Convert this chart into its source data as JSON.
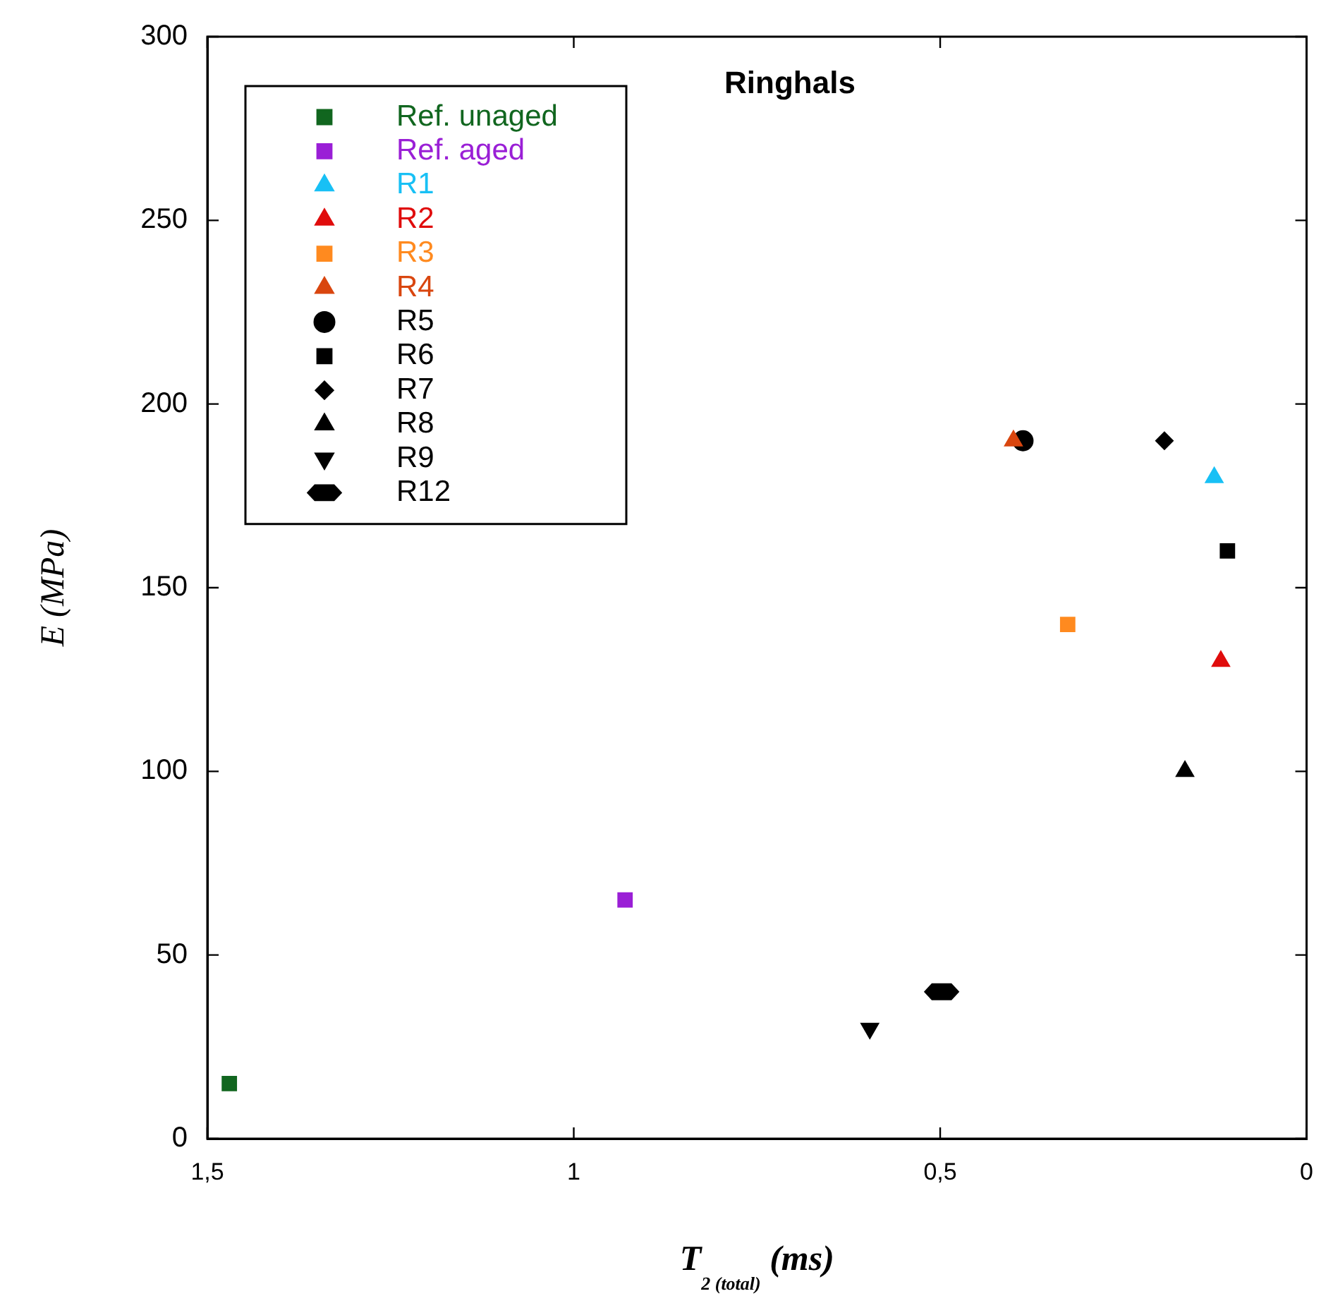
{
  "chart_data": {
    "type": "scatter",
    "title": "Ringhals",
    "xlabel": "T$_{2 (total)}$ (ms)",
    "ylabel": "E (MPa)",
    "xlim": [
      1.5,
      0
    ],
    "xticks": [
      {
        "value": 1.5,
        "label": "1,5"
      },
      1,
      {
        "value": 0.5,
        "label": "0,5"
      },
      0
    ],
    "ylim": [
      0,
      300
    ],
    "yticks": [
      0,
      50,
      100,
      150,
      200,
      250,
      300
    ],
    "grid": false,
    "legend": "top left",
    "series": [
      {
        "name": "Ref. unaged",
        "color": "#11661f",
        "marker": "square",
        "x": [
          1.47
        ],
        "values": [
          15
        ]
      },
      {
        "name": "Ref. aged",
        "color": "#9a1fd6",
        "marker": "square",
        "x": [
          0.93
        ],
        "values": [
          65
        ]
      },
      {
        "name": "R1",
        "color": "#18c0f5",
        "marker": "triangle",
        "x": [
          0.126
        ],
        "values": [
          180
        ]
      },
      {
        "name": "R2",
        "color": "#e00c0c",
        "marker": "triangle",
        "x": [
          0.117
        ],
        "values": [
          130
        ]
      },
      {
        "name": "R3",
        "color": "#ff8a1f",
        "marker": "square",
        "x": [
          0.326
        ],
        "values": [
          140
        ]
      },
      {
        "name": "R4",
        "color": "#d9460f",
        "marker": "triangle",
        "x": [
          0.4
        ],
        "values": [
          190
        ]
      },
      {
        "name": "R5",
        "color": "#000000",
        "marker": "circle",
        "x": [
          0.387
        ],
        "values": [
          190
        ]
      },
      {
        "name": "R6",
        "color": "#000000",
        "marker": "square",
        "x": [
          0.108
        ],
        "values": [
          160
        ]
      },
      {
        "name": "R7",
        "color": "#000000",
        "marker": "diamond",
        "x": [
          0.194
        ],
        "values": [
          190
        ]
      },
      {
        "name": "R8",
        "color": "#000000",
        "marker": "triangle",
        "x": [
          0.166
        ],
        "values": [
          100
        ]
      },
      {
        "name": "R9",
        "color": "#000000",
        "marker": "triangle-down",
        "x": [
          0.596
        ],
        "values": [
          30
        ]
      },
      {
        "name": "R12",
        "color": "#000000",
        "x": [
          0.498
        ],
        "values": [
          40
        ]
      }
    ]
  }
}
